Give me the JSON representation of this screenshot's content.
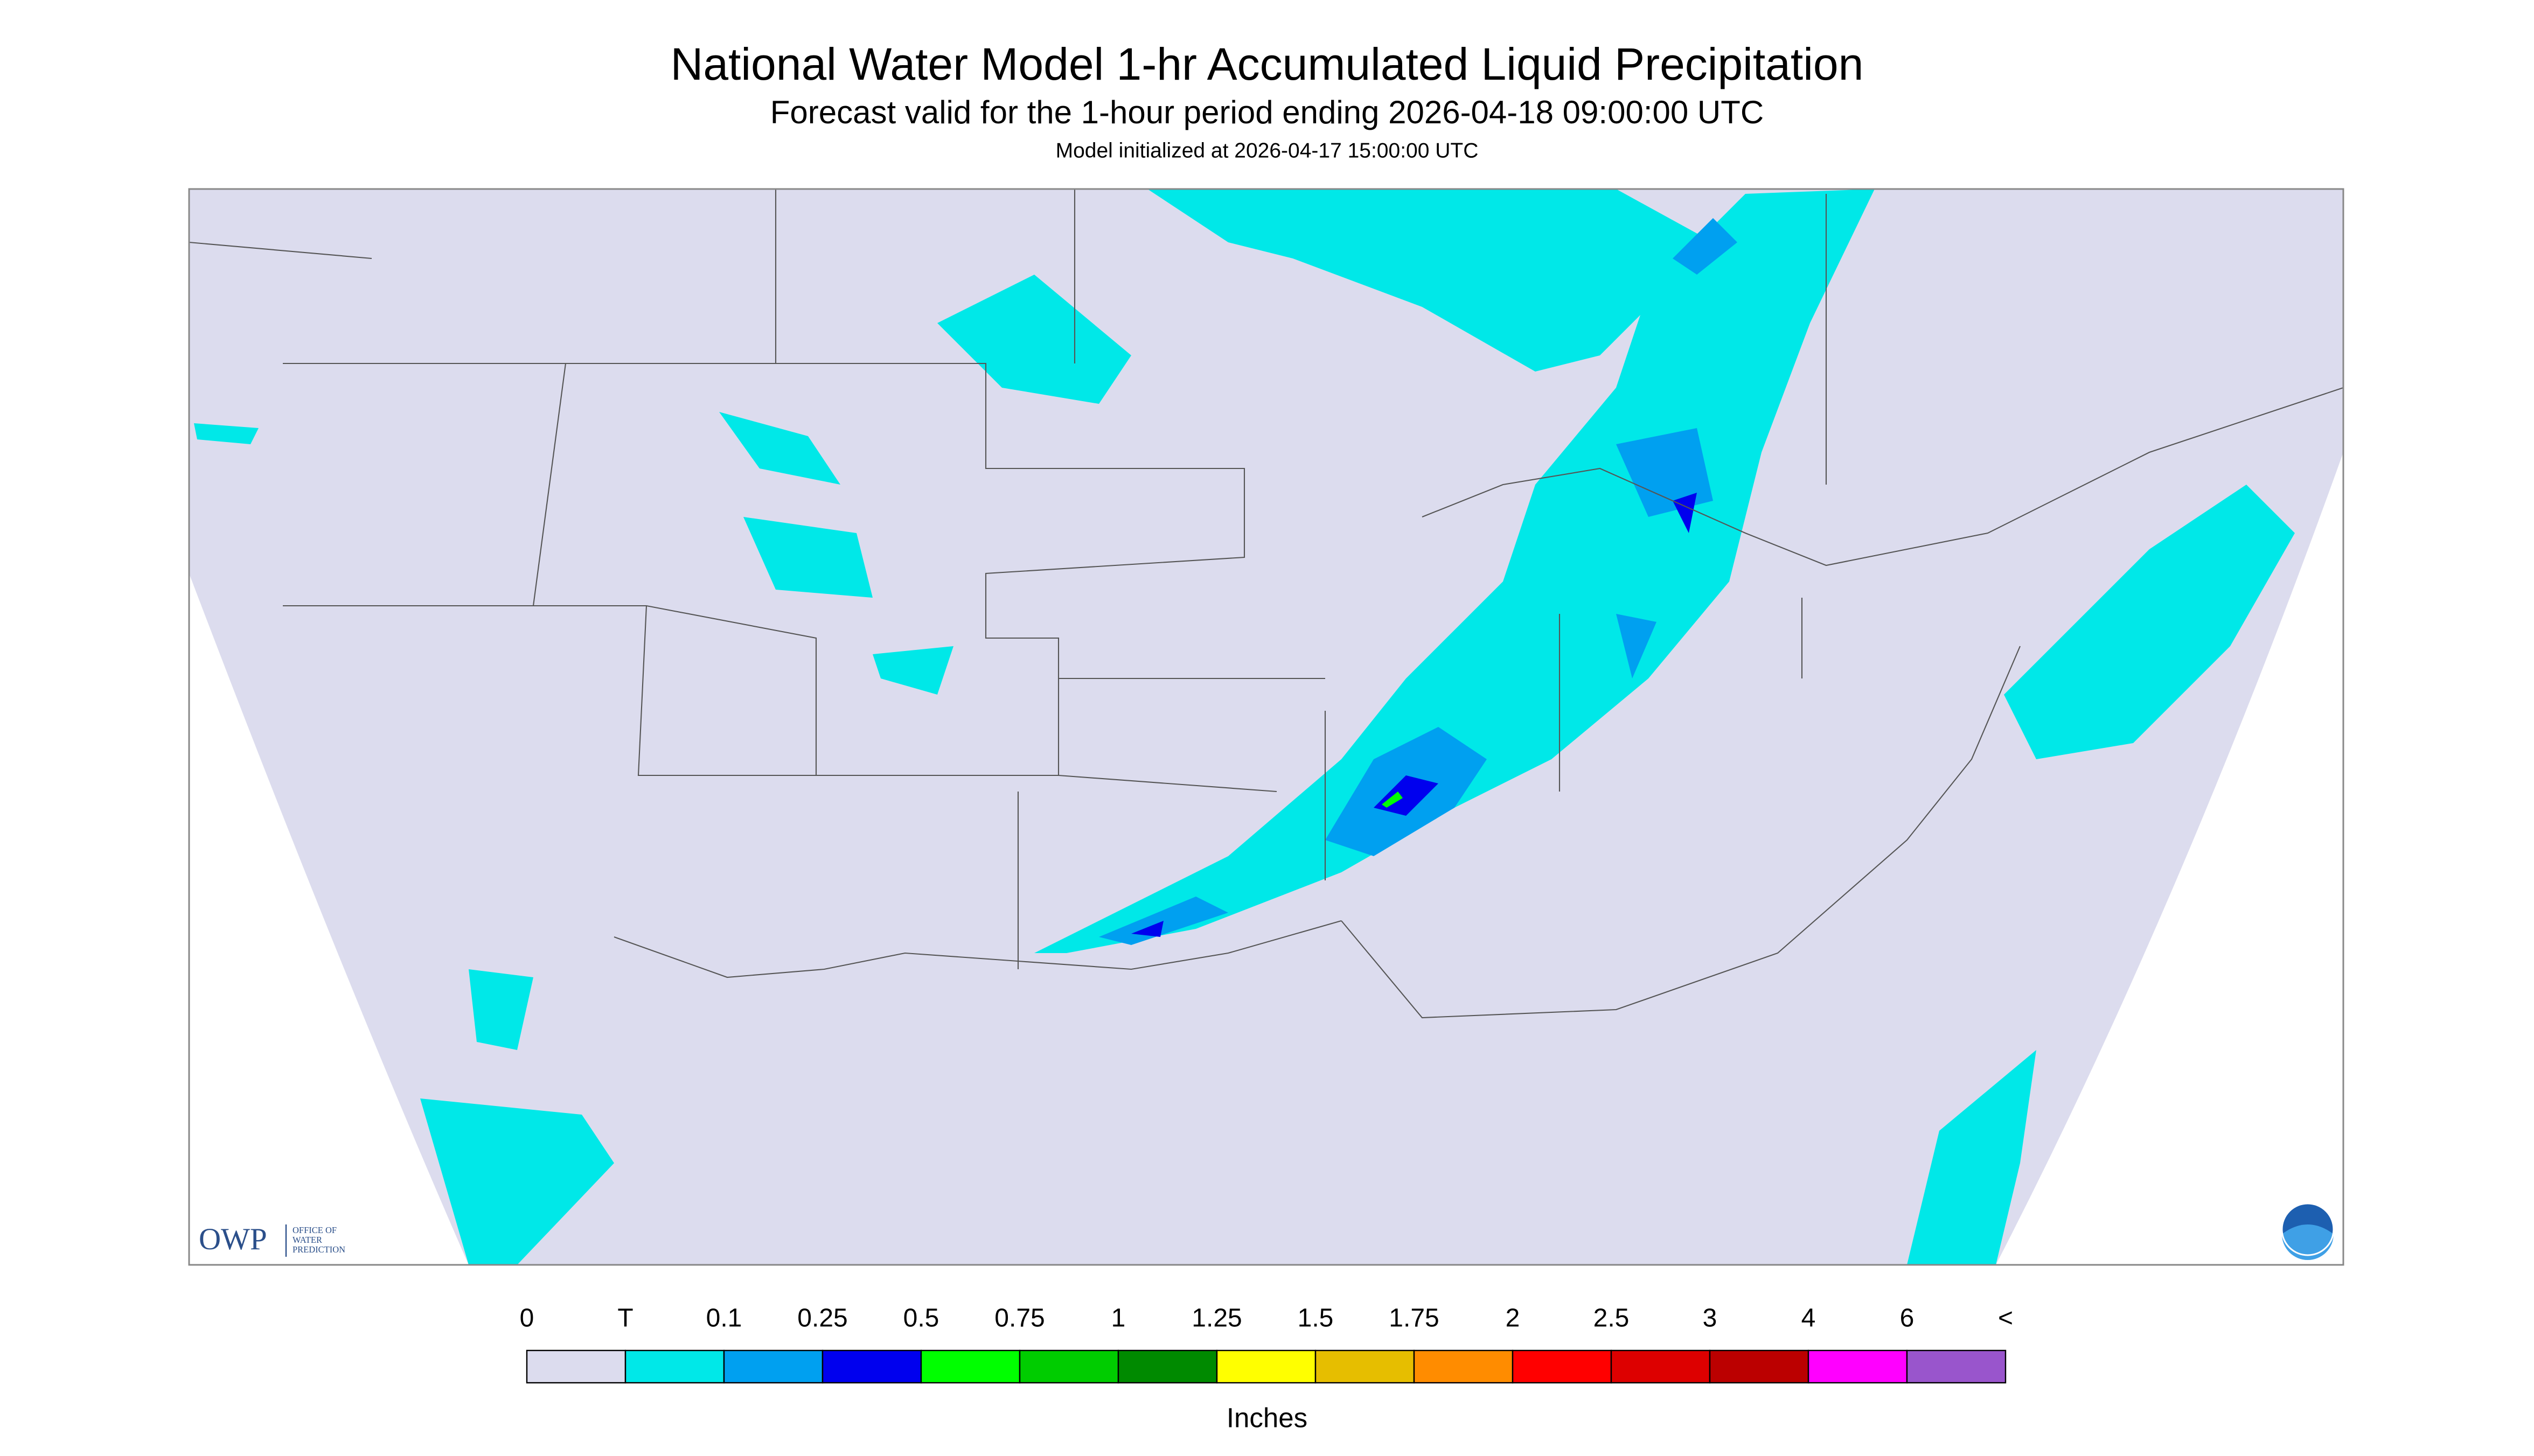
{
  "header": {
    "title": "National Water Model 1-hr Accumulated Liquid Precipitation",
    "subtitle": "Forecast valid for the 1-hour period ending 2026-04-18 09:00:00 UTC",
    "init": "Model initialized at 2026-04-17 15:00:00 UTC"
  },
  "logo": {
    "name": "OWP",
    "line1": "OFFICE OF",
    "line2": "WATER",
    "line3": "PREDICTION"
  },
  "legend": {
    "labels": [
      "0",
      "T",
      "0.1",
      "0.25",
      "0.5",
      "0.75",
      "1",
      "1.25",
      "1.5",
      "1.75",
      "2",
      "2.5",
      "3",
      "4",
      "6",
      "<"
    ],
    "colors": [
      "#dcdcee",
      "#00e8e8",
      "#00a0f0",
      "#0000ee",
      "#00ff00",
      "#00cc00",
      "#008a00",
      "#ffff00",
      "#e6be00",
      "#ff8c00",
      "#ff0000",
      "#dd0000",
      "#bb0000",
      "#ff00ff",
      "#9955cc"
    ],
    "unit": "Inches"
  }
}
